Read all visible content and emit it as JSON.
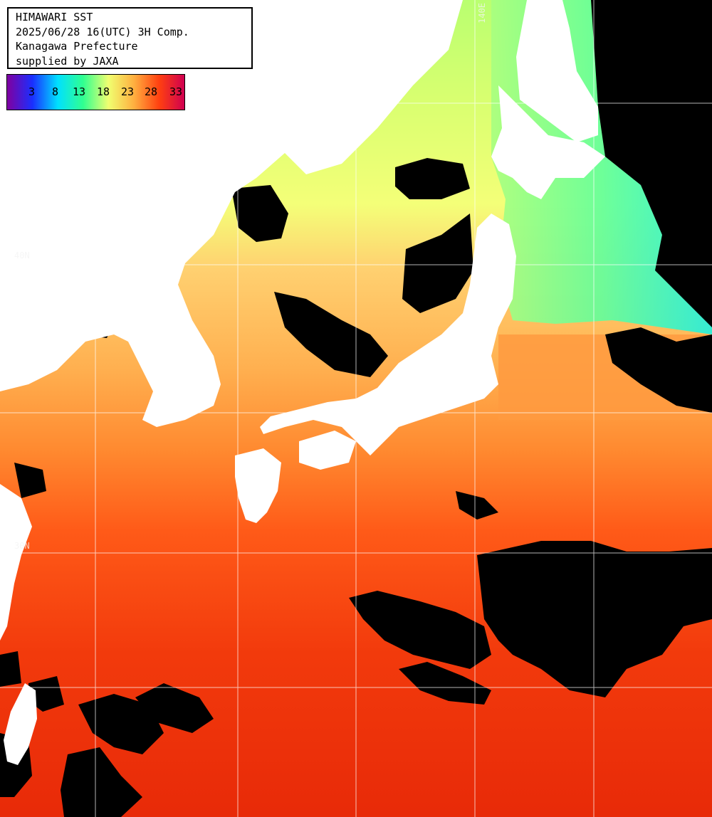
{
  "header": {
    "title": "HIMAWARI SST",
    "timestamp": "2025/06/28 16(UTC) 3H Comp.",
    "region": "Kanagawa Prefecture",
    "credit": "supplied by JAXA"
  },
  "legend": {
    "ticks": [
      "3",
      "8",
      "13",
      "18",
      "23",
      "28",
      "33"
    ],
    "colors": [
      "#8000a0",
      "#1a2fff",
      "#00e0ff",
      "#30ff90",
      "#f0ff70",
      "#ffb040",
      "#ff4010",
      "#d00050"
    ]
  },
  "grid_labels": {
    "lon_140": "140E",
    "lat_upper": "40N",
    "lat_lower": "30N"
  },
  "map_colors": {
    "land": "#ffffff",
    "cloud_mask": "#000000",
    "gridline": "#ffffff"
  }
}
